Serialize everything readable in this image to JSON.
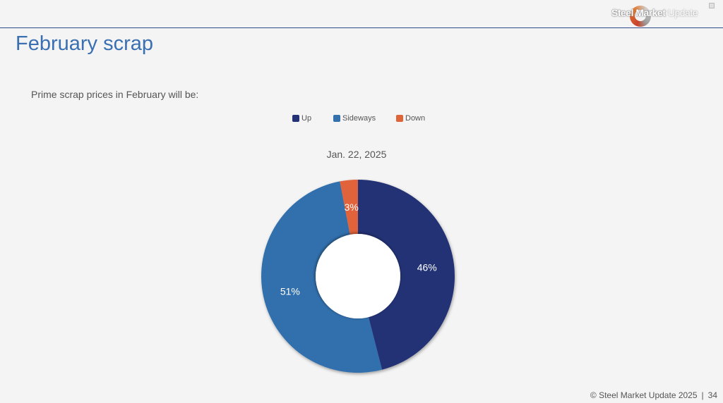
{
  "header": {
    "logo_bold": "Steel Market",
    "logo_light": " Update",
    "title": "February scrap"
  },
  "question": "Prime scrap prices in February will be:",
  "chart_data": {
    "type": "pie",
    "variant": "donut",
    "title": "Jan. 22, 2025",
    "legend_position": "top",
    "categories": [
      "Up",
      "Sideways",
      "Down"
    ],
    "values": [
      46,
      51,
      3
    ],
    "labels": [
      "46%",
      "51%",
      "3%"
    ],
    "colors": [
      "#233275",
      "#3370ad",
      "#e0643a"
    ]
  },
  "footer": {
    "copyright": "© Steel Market Update 2025",
    "separator": "|",
    "page_number": "34"
  }
}
